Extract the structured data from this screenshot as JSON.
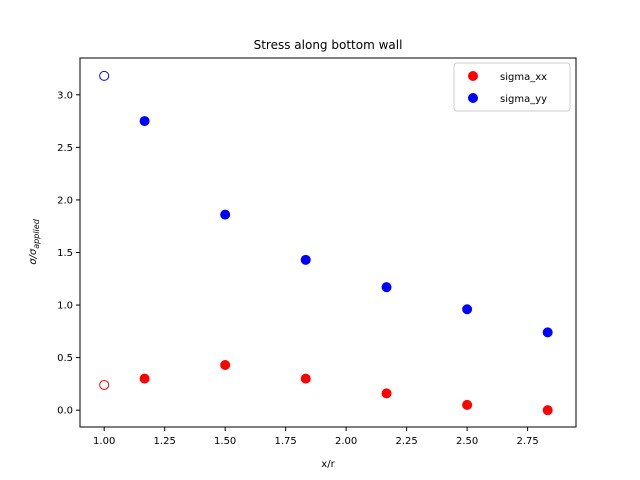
{
  "chart_data": {
    "type": "scatter",
    "title": "Stress along bottom wall",
    "xlabel": "x/r",
    "ylabel": {
      "base": "σ/σ",
      "subscript": "applied"
    },
    "xlim": [
      0.9,
      2.95
    ],
    "ylim": [
      -0.16,
      3.35
    ],
    "xticks": [
      1.0,
      1.25,
      1.5,
      1.75,
      2.0,
      2.25,
      2.5,
      2.75
    ],
    "xtick_labels": [
      "1.00",
      "1.25",
      "1.50",
      "1.75",
      "2.00",
      "2.25",
      "2.50",
      "2.75"
    ],
    "yticks": [
      0.0,
      0.5,
      1.0,
      1.5,
      2.0,
      2.5,
      3.0
    ],
    "ytick_labels": [
      "0.0",
      "0.5",
      "1.0",
      "1.5",
      "2.0",
      "2.5",
      "3.0"
    ],
    "grid": false,
    "legend_position": "top-right",
    "series": [
      {
        "name": "sigma_xx",
        "color": "#ff0000",
        "x": [
          1.0,
          1.167,
          1.5,
          1.833,
          2.167,
          2.5,
          2.833
        ],
        "y": [
          0.24,
          0.3,
          0.43,
          0.3,
          0.16,
          0.05,
          0.0
        ],
        "filled": [
          false,
          true,
          true,
          true,
          true,
          true,
          true
        ]
      },
      {
        "name": "sigma_yy",
        "color": "#0000ff",
        "x": [
          1.0,
          1.167,
          1.5,
          1.833,
          2.167,
          2.5,
          2.833
        ],
        "y": [
          3.18,
          2.75,
          1.86,
          1.43,
          1.17,
          0.96,
          0.74
        ],
        "filled": [
          false,
          true,
          true,
          true,
          true,
          true,
          true
        ]
      }
    ]
  }
}
